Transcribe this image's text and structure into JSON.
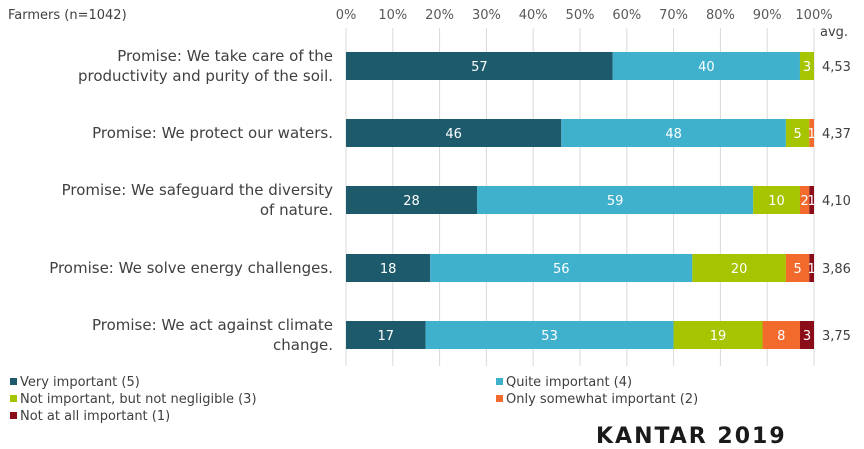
{
  "header": {
    "sample_label": "Farmers (n=1042)"
  },
  "footer": {
    "logo_text": "KANTAR 2019"
  },
  "chart_data": {
    "type": "bar",
    "orientation": "horizontal",
    "stacked": true,
    "x_tick_labels": [
      "0%",
      "10%",
      "20%",
      "30%",
      "40%",
      "50%",
      "60%",
      "70%",
      "80%",
      "90%",
      "100%"
    ],
    "xlim": [
      0,
      100
    ],
    "grid": true,
    "legend_position": "bottom",
    "avg_label": "avg.",
    "categories": [
      [
        "Promise: We take care of the",
        "productivity and purity of the soil."
      ],
      [
        "Promise: We protect our waters."
      ],
      [
        "Promise: We safeguard the diversity",
        "of nature."
      ],
      [
        "Promise: We solve energy challenges."
      ],
      [
        "Promise: We act against climate",
        "change."
      ]
    ],
    "averages": [
      "4,53",
      "4,37",
      "4,10",
      "3,86",
      "3,75"
    ],
    "series": [
      {
        "name": "Very important (5)",
        "color": "#1d5a6b",
        "values": [
          57,
          46,
          28,
          18,
          17
        ],
        "labels": [
          "57",
          "46",
          "28",
          "18",
          "17"
        ]
      },
      {
        "name": "Quite important (4)",
        "color": "#40b1cd",
        "values": [
          40,
          48,
          59,
          56,
          53
        ],
        "labels": [
          "40",
          "48",
          "59",
          "56",
          "53"
        ]
      },
      {
        "name": "Not important, but not negligible (3)",
        "color": "#a6c400",
        "values": [
          3,
          5,
          10,
          20,
          19
        ],
        "labels": [
          "3",
          "5",
          "10",
          "20",
          "19"
        ]
      },
      {
        "name": "Only somewhat important (2)",
        "color": "#f26a2c",
        "values": [
          0,
          1,
          2,
          5,
          8
        ],
        "labels": [
          "",
          "1",
          "2",
          "5",
          "8"
        ]
      },
      {
        "name": "Not at all important  (1)",
        "color": "#8b0d1a",
        "values": [
          0,
          0,
          1,
          1,
          3
        ],
        "labels": [
          "",
          "",
          "1",
          "1",
          "3"
        ]
      }
    ]
  }
}
